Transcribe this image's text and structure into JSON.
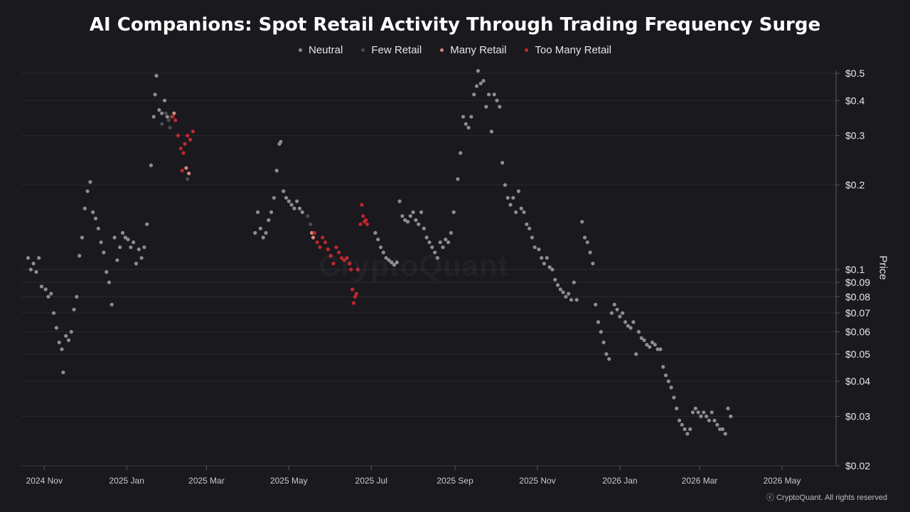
{
  "chart_data": {
    "type": "scatter",
    "title": "AI Companions: Spot Retail Activity Through Trading Frequency Surge",
    "xlabel": "",
    "ylabel": "Price",
    "y_scale": "log",
    "ylim": [
      0.02,
      0.5
    ],
    "xlim": [
      "2024-10-15",
      "2026-06-10"
    ],
    "grid": true,
    "legend_position": "top-center",
    "y_ticks": [
      {
        "value": 0.5,
        "label": "$0.5"
      },
      {
        "value": 0.4,
        "label": "$0.4"
      },
      {
        "value": 0.3,
        "label": "$0.3"
      },
      {
        "value": 0.2,
        "label": "$0.2"
      },
      {
        "value": 0.1,
        "label": "$0.1"
      },
      {
        "value": 0.09,
        "label": "$0.09"
      },
      {
        "value": 0.08,
        "label": "$0.08"
      },
      {
        "value": 0.07,
        "label": "$0.07"
      },
      {
        "value": 0.06,
        "label": "$0.06"
      },
      {
        "value": 0.05,
        "label": "$0.05"
      },
      {
        "value": 0.04,
        "label": "$0.04"
      },
      {
        "value": 0.03,
        "label": "$0.03"
      },
      {
        "value": 0.02,
        "label": "$0.02"
      }
    ],
    "x_ticks": [
      {
        "date": "2024-11-01",
        "label": "2024 Nov"
      },
      {
        "date": "2025-01-01",
        "label": "2025 Jan"
      },
      {
        "date": "2025-03-01",
        "label": "2025 Mar"
      },
      {
        "date": "2025-05-01",
        "label": "2025 May"
      },
      {
        "date": "2025-07-01",
        "label": "2025 Jul"
      },
      {
        "date": "2025-09-01",
        "label": "2025 Sep"
      },
      {
        "date": "2025-11-01",
        "label": "2025 Nov"
      },
      {
        "date": "2026-01-01",
        "label": "2026 Jan"
      },
      {
        "date": "2026-03-01",
        "label": "2026 Mar"
      },
      {
        "date": "2026-05-01",
        "label": "2026 May"
      }
    ],
    "series": [
      {
        "name": "Neutral",
        "color": "#8e8d96",
        "points": [
          [
            "2024-10-20",
            0.11
          ],
          [
            "2024-10-22",
            0.1
          ],
          [
            "2024-10-24",
            0.105
          ],
          [
            "2024-10-26",
            0.098
          ],
          [
            "2024-10-28",
            0.11
          ],
          [
            "2024-10-30",
            0.087
          ],
          [
            "2024-11-02",
            0.085
          ],
          [
            "2024-11-04",
            0.08
          ],
          [
            "2024-11-06",
            0.082
          ],
          [
            "2024-11-08",
            0.07
          ],
          [
            "2024-11-10",
            0.062
          ],
          [
            "2024-11-12",
            0.055
          ],
          [
            "2024-11-14",
            0.052
          ],
          [
            "2024-11-15",
            0.043
          ],
          [
            "2024-11-17",
            0.058
          ],
          [
            "2024-11-19",
            0.056
          ],
          [
            "2024-11-21",
            0.06
          ],
          [
            "2024-11-23",
            0.072
          ],
          [
            "2024-11-25",
            0.08
          ],
          [
            "2024-11-27",
            0.112
          ],
          [
            "2024-11-29",
            0.13
          ],
          [
            "2024-12-01",
            0.165
          ],
          [
            "2024-12-03",
            0.19
          ],
          [
            "2024-12-05",
            0.205
          ],
          [
            "2024-12-07",
            0.16
          ],
          [
            "2024-12-09",
            0.152
          ],
          [
            "2024-12-11",
            0.14
          ],
          [
            "2024-12-13",
            0.125
          ],
          [
            "2024-12-15",
            0.115
          ],
          [
            "2024-12-17",
            0.098
          ],
          [
            "2024-12-19",
            0.09
          ],
          [
            "2024-12-21",
            0.075
          ],
          [
            "2024-12-23",
            0.13
          ],
          [
            "2024-12-25",
            0.108
          ],
          [
            "2024-12-27",
            0.12
          ],
          [
            "2024-12-29",
            0.135
          ],
          [
            "2024-12-31",
            0.13
          ],
          [
            "2025-01-02",
            0.128
          ],
          [
            "2025-01-04",
            0.12
          ],
          [
            "2025-01-06",
            0.125
          ],
          [
            "2025-01-08",
            0.105
          ],
          [
            "2025-01-10",
            0.118
          ],
          [
            "2025-01-12",
            0.11
          ],
          [
            "2025-01-14",
            0.12
          ],
          [
            "2025-01-16",
            0.145
          ],
          [
            "2025-01-19",
            0.235
          ],
          [
            "2025-01-21",
            0.35
          ],
          [
            "2025-01-22",
            0.42
          ],
          [
            "2025-01-23",
            0.49
          ],
          [
            "2025-01-25",
            0.37
          ],
          [
            "2025-01-27",
            0.36
          ],
          [
            "2025-01-29",
            0.4
          ],
          [
            "2025-01-31",
            0.35
          ],
          [
            "2025-04-06",
            0.135
          ],
          [
            "2025-04-08",
            0.16
          ],
          [
            "2025-04-10",
            0.14
          ],
          [
            "2025-04-12",
            0.13
          ],
          [
            "2025-04-14",
            0.135
          ],
          [
            "2025-04-16",
            0.15
          ],
          [
            "2025-04-18",
            0.16
          ],
          [
            "2025-04-20",
            0.18
          ],
          [
            "2025-04-22",
            0.225
          ],
          [
            "2025-04-24",
            0.28
          ],
          [
            "2025-04-25",
            0.285
          ],
          [
            "2025-04-27",
            0.19
          ],
          [
            "2025-04-29",
            0.18
          ],
          [
            "2025-05-01",
            0.175
          ],
          [
            "2025-05-03",
            0.17
          ],
          [
            "2025-05-05",
            0.165
          ],
          [
            "2025-05-07",
            0.175
          ],
          [
            "2025-05-09",
            0.165
          ],
          [
            "2025-05-11",
            0.16
          ],
          [
            "2025-07-04",
            0.135
          ],
          [
            "2025-07-06",
            0.128
          ],
          [
            "2025-07-08",
            0.12
          ],
          [
            "2025-07-10",
            0.115
          ],
          [
            "2025-07-12",
            0.11
          ],
          [
            "2025-07-14",
            0.108
          ],
          [
            "2025-07-16",
            0.106
          ],
          [
            "2025-07-18",
            0.104
          ],
          [
            "2025-07-20",
            0.106
          ],
          [
            "2025-07-22",
            0.175
          ],
          [
            "2025-07-24",
            0.155
          ],
          [
            "2025-07-26",
            0.15
          ],
          [
            "2025-07-28",
            0.148
          ],
          [
            "2025-07-30",
            0.155
          ],
          [
            "2025-08-01",
            0.16
          ],
          [
            "2025-08-03",
            0.15
          ],
          [
            "2025-08-05",
            0.145
          ],
          [
            "2025-08-07",
            0.16
          ],
          [
            "2025-08-09",
            0.14
          ],
          [
            "2025-08-11",
            0.13
          ],
          [
            "2025-08-13",
            0.125
          ],
          [
            "2025-08-15",
            0.12
          ],
          [
            "2025-08-17",
            0.115
          ],
          [
            "2025-08-19",
            0.11
          ],
          [
            "2025-08-21",
            0.125
          ],
          [
            "2025-08-23",
            0.12
          ],
          [
            "2025-08-25",
            0.128
          ],
          [
            "2025-08-27",
            0.125
          ],
          [
            "2025-08-29",
            0.135
          ],
          [
            "2025-08-31",
            0.16
          ],
          [
            "2025-09-03",
            0.21
          ],
          [
            "2025-09-05",
            0.26
          ],
          [
            "2025-09-07",
            0.35
          ],
          [
            "2025-09-09",
            0.33
          ],
          [
            "2025-09-11",
            0.32
          ],
          [
            "2025-09-13",
            0.35
          ],
          [
            "2025-09-15",
            0.42
          ],
          [
            "2025-09-17",
            0.45
          ],
          [
            "2025-09-18",
            0.51
          ],
          [
            "2025-09-20",
            0.46
          ],
          [
            "2025-09-22",
            0.47
          ],
          [
            "2025-09-24",
            0.38
          ],
          [
            "2025-09-26",
            0.42
          ],
          [
            "2025-09-28",
            0.31
          ],
          [
            "2025-09-30",
            0.42
          ],
          [
            "2025-10-02",
            0.4
          ],
          [
            "2025-10-04",
            0.38
          ],
          [
            "2025-10-06",
            0.24
          ],
          [
            "2025-10-08",
            0.2
          ],
          [
            "2025-10-10",
            0.18
          ],
          [
            "2025-10-12",
            0.17
          ],
          [
            "2025-10-14",
            0.18
          ],
          [
            "2025-10-16",
            0.16
          ],
          [
            "2025-10-18",
            0.19
          ],
          [
            "2025-10-20",
            0.165
          ],
          [
            "2025-10-22",
            0.16
          ],
          [
            "2025-10-24",
            0.145
          ],
          [
            "2025-10-26",
            0.14
          ],
          [
            "2025-10-28",
            0.13
          ],
          [
            "2025-10-30",
            0.12
          ],
          [
            "2025-11-02",
            0.118
          ],
          [
            "2025-11-04",
            0.11
          ],
          [
            "2025-11-06",
            0.105
          ],
          [
            "2025-11-08",
            0.11
          ],
          [
            "2025-11-10",
            0.102
          ],
          [
            "2025-11-12",
            0.1
          ],
          [
            "2025-11-14",
            0.092
          ],
          [
            "2025-11-16",
            0.088
          ],
          [
            "2025-11-18",
            0.085
          ],
          [
            "2025-11-20",
            0.083
          ],
          [
            "2025-11-22",
            0.08
          ],
          [
            "2025-11-24",
            0.082
          ],
          [
            "2025-11-26",
            0.078
          ],
          [
            "2025-11-28",
            0.09
          ],
          [
            "2025-11-30",
            0.078
          ],
          [
            "2025-12-04",
            0.148
          ],
          [
            "2025-12-06",
            0.13
          ],
          [
            "2025-12-08",
            0.125
          ],
          [
            "2025-12-10",
            0.115
          ],
          [
            "2025-12-12",
            0.105
          ],
          [
            "2025-12-14",
            0.075
          ],
          [
            "2025-12-16",
            0.065
          ],
          [
            "2025-12-18",
            0.06
          ],
          [
            "2025-12-20",
            0.055
          ],
          [
            "2025-12-22",
            0.05
          ],
          [
            "2025-12-24",
            0.048
          ],
          [
            "2025-12-26",
            0.07
          ],
          [
            "2025-12-28",
            0.075
          ],
          [
            "2025-12-30",
            0.072
          ],
          [
            "2026-01-01",
            0.068
          ],
          [
            "2026-01-03",
            0.07
          ],
          [
            "2026-01-05",
            0.065
          ],
          [
            "2026-01-07",
            0.063
          ],
          [
            "2026-01-09",
            0.062
          ],
          [
            "2026-01-11",
            0.065
          ],
          [
            "2026-01-13",
            0.05
          ],
          [
            "2026-01-15",
            0.06
          ],
          [
            "2026-01-17",
            0.057
          ],
          [
            "2026-01-19",
            0.056
          ],
          [
            "2026-01-21",
            0.054
          ],
          [
            "2026-01-23",
            0.053
          ],
          [
            "2026-01-25",
            0.055
          ],
          [
            "2026-01-27",
            0.054
          ],
          [
            "2026-01-29",
            0.052
          ],
          [
            "2026-01-31",
            0.052
          ],
          [
            "2026-02-02",
            0.045
          ],
          [
            "2026-02-04",
            0.042
          ],
          [
            "2026-02-06",
            0.04
          ],
          [
            "2026-02-08",
            0.038
          ],
          [
            "2026-02-10",
            0.035
          ],
          [
            "2026-02-12",
            0.032
          ],
          [
            "2026-02-14",
            0.029
          ],
          [
            "2026-02-16",
            0.028
          ],
          [
            "2026-02-18",
            0.027
          ],
          [
            "2026-02-20",
            0.026
          ],
          [
            "2026-02-22",
            0.027
          ],
          [
            "2026-02-24",
            0.031
          ],
          [
            "2026-02-26",
            0.032
          ],
          [
            "2026-02-28",
            0.031
          ],
          [
            "2026-03-02",
            0.03
          ],
          [
            "2026-03-04",
            0.031
          ],
          [
            "2026-03-06",
            0.03
          ],
          [
            "2026-03-08",
            0.029
          ],
          [
            "2026-03-10",
            0.031
          ],
          [
            "2026-03-12",
            0.029
          ],
          [
            "2026-03-14",
            0.028
          ],
          [
            "2026-03-16",
            0.027
          ],
          [
            "2026-03-18",
            0.027
          ],
          [
            "2026-03-20",
            0.026
          ],
          [
            "2026-03-22",
            0.032
          ],
          [
            "2026-03-24",
            0.03
          ]
        ]
      },
      {
        "name": "Few Retail",
        "color": "#4c4b52",
        "points": [
          [
            "2025-01-27",
            0.33
          ],
          [
            "2025-01-30",
            0.36
          ],
          [
            "2025-02-01",
            0.34
          ],
          [
            "2025-02-02",
            0.32
          ],
          [
            "2025-02-03",
            0.35
          ],
          [
            "2025-02-15",
            0.21
          ],
          [
            "2025-05-15",
            0.155
          ],
          [
            "2025-05-17",
            0.145
          ]
        ]
      },
      {
        "name": "Many Retail",
        "color": "#d4897b",
        "points": [
          [
            "2025-02-05",
            0.36
          ],
          [
            "2025-02-14",
            0.23
          ],
          [
            "2025-02-16",
            0.22
          ],
          [
            "2025-05-18",
            0.135
          ],
          [
            "2025-05-19",
            0.13
          ]
        ]
      },
      {
        "name": "Too Many Retail",
        "color": "#c1272d",
        "points": [
          [
            "2025-02-04",
            0.35
          ],
          [
            "2025-02-06",
            0.34
          ],
          [
            "2025-02-08",
            0.3
          ],
          [
            "2025-02-10",
            0.27
          ],
          [
            "2025-02-12",
            0.26
          ],
          [
            "2025-02-13",
            0.28
          ],
          [
            "2025-02-15",
            0.3
          ],
          [
            "2025-02-17",
            0.29
          ],
          [
            "2025-02-19",
            0.31
          ],
          [
            "2025-02-11",
            0.225
          ],
          [
            "2025-05-20",
            0.135
          ],
          [
            "2025-05-22",
            0.125
          ],
          [
            "2025-05-24",
            0.12
          ],
          [
            "2025-05-26",
            0.13
          ],
          [
            "2025-05-28",
            0.125
          ],
          [
            "2025-05-30",
            0.118
          ],
          [
            "2025-06-01",
            0.112
          ],
          [
            "2025-06-03",
            0.105
          ],
          [
            "2025-06-05",
            0.12
          ],
          [
            "2025-06-07",
            0.115
          ],
          [
            "2025-06-09",
            0.11
          ],
          [
            "2025-06-11",
            0.108
          ],
          [
            "2025-06-13",
            0.11
          ],
          [
            "2025-06-15",
            0.105
          ],
          [
            "2025-06-16",
            0.1
          ],
          [
            "2025-06-17",
            0.085
          ],
          [
            "2025-06-18",
            0.076
          ],
          [
            "2025-06-19",
            0.08
          ],
          [
            "2025-06-20",
            0.082
          ],
          [
            "2025-06-21",
            0.1
          ],
          [
            "2025-06-23",
            0.145
          ],
          [
            "2025-06-24",
            0.17
          ],
          [
            "2025-06-25",
            0.155
          ],
          [
            "2025-06-26",
            0.148
          ],
          [
            "2025-06-27",
            0.15
          ],
          [
            "2025-06-28",
            0.145
          ]
        ]
      }
    ]
  },
  "watermark": "CryptoQuant",
  "copyright": "ⓒ CryptoQuant. All rights reserved"
}
